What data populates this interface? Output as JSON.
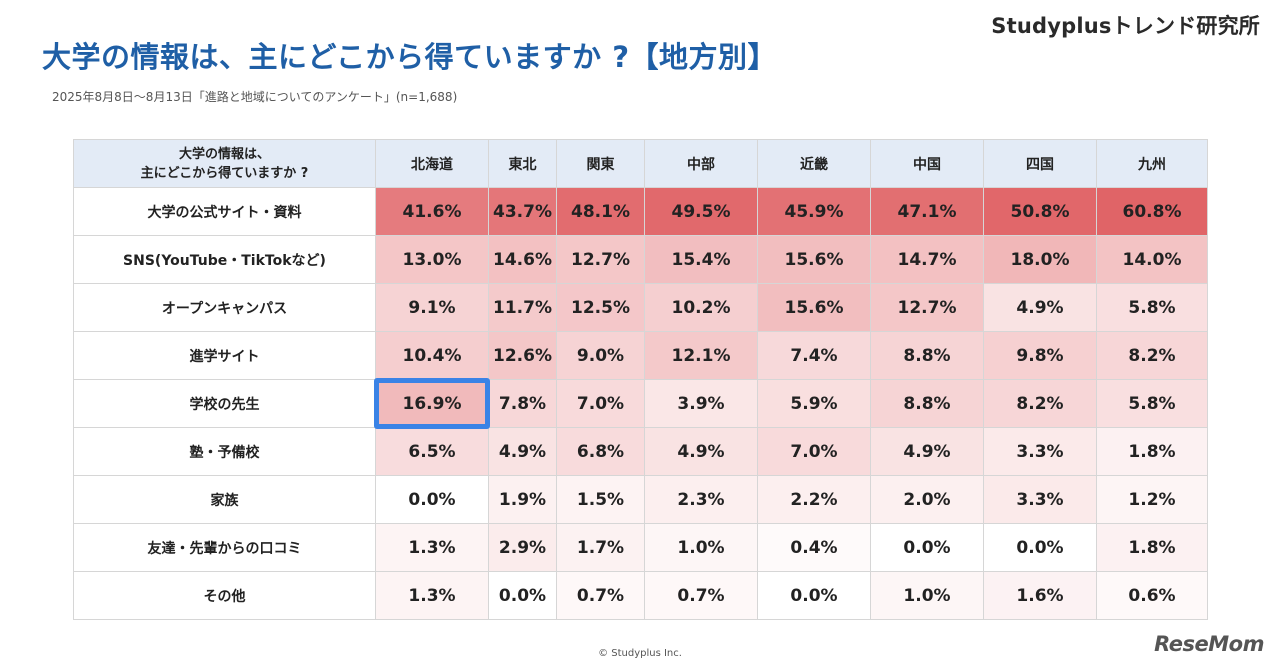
{
  "brand": "Studyplusトレンド研究所",
  "title": "大学の情報は、主にどこから得ていますか ?【地方別】",
  "subtitle": "2025年8月8日〜8月13日「進路と地域についてのアンケート」(n=1,688)",
  "table": {
    "question_header": "大学の情報は、\n主にどこから得ていますか ?",
    "regions": [
      "北海道",
      "東北",
      "関東",
      "中部",
      "近畿",
      "中国",
      "四国",
      "九州"
    ],
    "rows": [
      {
        "label": "大学の公式サイト・資料",
        "values": [
          "41.6%",
          "43.7%",
          "48.1%",
          "49.5%",
          "45.9%",
          "47.1%",
          "50.8%",
          "60.8%"
        ]
      },
      {
        "label": "SNS(YouTube・TikTokなど)",
        "values": [
          "13.0%",
          "14.6%",
          "12.7%",
          "15.4%",
          "15.6%",
          "14.7%",
          "18.0%",
          "14.0%"
        ]
      },
      {
        "label": "オープンキャンパス",
        "values": [
          "9.1%",
          "11.7%",
          "12.5%",
          "10.2%",
          "15.6%",
          "12.7%",
          "4.9%",
          "5.8%"
        ]
      },
      {
        "label": "進学サイト",
        "values": [
          "10.4%",
          "12.6%",
          "9.0%",
          "12.1%",
          "7.4%",
          "8.8%",
          "9.8%",
          "8.2%"
        ]
      },
      {
        "label": "学校の先生",
        "values": [
          "16.9%",
          "7.8%",
          "7.0%",
          "3.9%",
          "5.9%",
          "8.8%",
          "8.2%",
          "5.8%"
        ]
      },
      {
        "label": "塾・予備校",
        "values": [
          "6.5%",
          "4.9%",
          "6.8%",
          "4.9%",
          "7.0%",
          "4.9%",
          "3.3%",
          "1.8%"
        ]
      },
      {
        "label": "家族",
        "values": [
          "0.0%",
          "1.9%",
          "1.5%",
          "2.3%",
          "2.2%",
          "2.0%",
          "3.3%",
          "1.2%"
        ]
      },
      {
        "label": "友達・先輩からの口コミ",
        "values": [
          "1.3%",
          "2.9%",
          "1.7%",
          "1.0%",
          "0.4%",
          "0.0%",
          "0.0%",
          "1.8%"
        ]
      },
      {
        "label": "その他",
        "values": [
          "1.3%",
          "0.0%",
          "0.7%",
          "0.7%",
          "0.0%",
          "1.0%",
          "1.6%",
          "0.6%"
        ]
      }
    ],
    "highlight": {
      "row": 4,
      "col": 0,
      "color": "#3a83e6"
    },
    "colors": {
      "header_bg": "#e3ebf6",
      "heat_high": "#e06467",
      "heat_low": "#ffffff"
    }
  },
  "copyright": "© Studyplus Inc.",
  "watermark": "ReseMom"
}
